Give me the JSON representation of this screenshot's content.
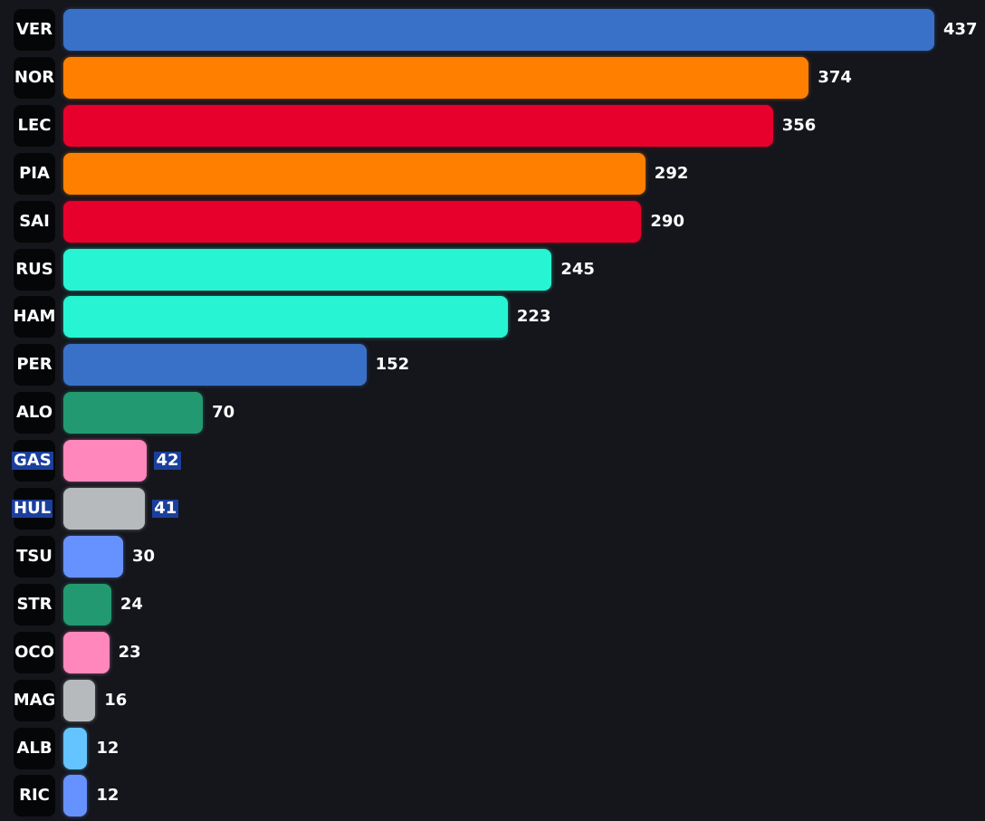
{
  "chart_data": {
    "type": "bar",
    "orientation": "horizontal",
    "title": "",
    "xlabel": "",
    "ylabel": "",
    "xlim": [
      0,
      437
    ],
    "grid": false,
    "categories": [
      "VER",
      "NOR",
      "LEC",
      "PIA",
      "SAI",
      "RUS",
      "HAM",
      "PER",
      "ALO",
      "GAS",
      "HUL",
      "TSU",
      "STR",
      "OCO",
      "MAG",
      "ALB",
      "RIC"
    ],
    "values": [
      437,
      374,
      356,
      292,
      290,
      245,
      223,
      152,
      70,
      42,
      41,
      30,
      24,
      23,
      16,
      12,
      12
    ],
    "colors": [
      "#3a71c8",
      "#ff8000",
      "#e8002d",
      "#ff8000",
      "#e8002d",
      "#27f4d2",
      "#27f4d2",
      "#3a71c8",
      "#229971",
      "#ff87bc",
      "#b6babd",
      "#6692ff",
      "#229971",
      "#ff87bc",
      "#b6babd",
      "#64c4ff",
      "#6692ff"
    ],
    "highlighted": [
      "GAS",
      "HUL"
    ],
    "highlight_color": "#1b3f9c"
  }
}
